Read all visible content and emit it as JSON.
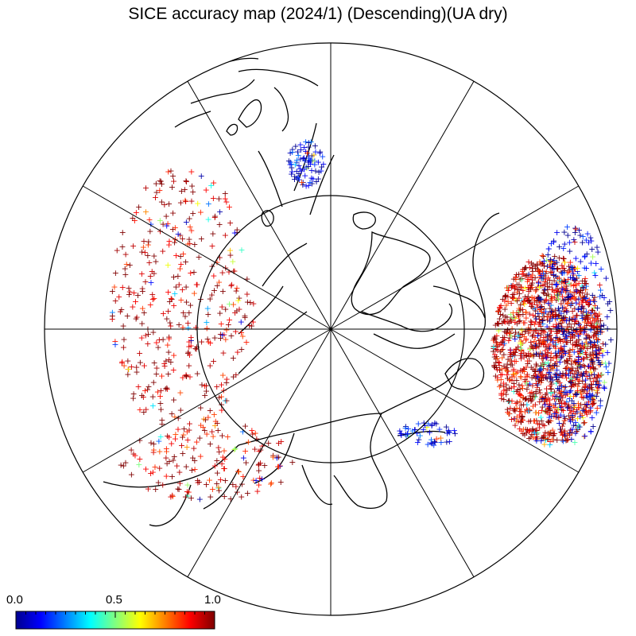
{
  "title": "SICE accuracy map (2024/1) (Descending)(UA dry)",
  "projection": "north-polar-stereographic",
  "graticule": {
    "meridian_spacing_deg": 30,
    "latitude_circles": "outer boundary and one inner circle"
  },
  "marker": {
    "symbol": "+",
    "meaning": "observation site colored by accuracy"
  },
  "colorbar": {
    "min_label": "0.0",
    "mid_label": "0.5",
    "max_label": "1.0",
    "min": 0.0,
    "max": 1.0,
    "colormap": "jet",
    "stops": [
      "#00008f",
      "#0000ff",
      "#0080ff",
      "#00ffff",
      "#80ff80",
      "#ffff00",
      "#ff8000",
      "#ff0000",
      "#800000"
    ]
  },
  "point_clusters": [
    {
      "region": "north-america-east",
      "dominant_value": 0.95,
      "density": "dense"
    },
    {
      "region": "north-america-east-edge",
      "dominant_value": 0.05,
      "density": "moderate"
    },
    {
      "region": "eurasia-west",
      "dominant_value": 0.95,
      "density": "moderate"
    },
    {
      "region": "scandinavia",
      "dominant_value": 0.1,
      "density": "sparse"
    },
    {
      "region": "siberia",
      "dominant_value": 0.95,
      "density": "sparse"
    },
    {
      "region": "alaska",
      "dominant_value": 0.1,
      "density": "sparse"
    }
  ]
}
